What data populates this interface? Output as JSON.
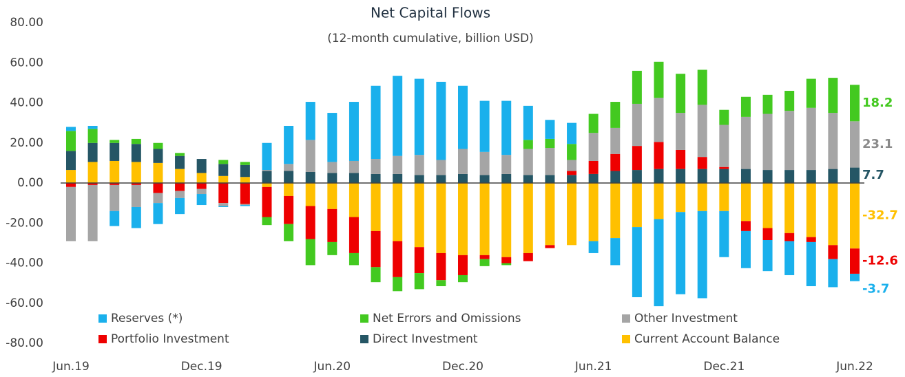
{
  "chart_data": {
    "type": "stacked-bar",
    "title": "Net Capital Flows",
    "subtitle": "(12-month cumulative, billion USD)",
    "categories": [
      "Jun.19",
      null,
      null,
      null,
      null,
      null,
      "Dec.19",
      null,
      null,
      null,
      null,
      null,
      "Jun.20",
      null,
      null,
      null,
      null,
      null,
      "Dec.20",
      null,
      null,
      null,
      null,
      null,
      "Jun.21",
      null,
      null,
      null,
      null,
      null,
      "Dec.21",
      null,
      null,
      null,
      null,
      null,
      "Jun.22"
    ],
    "ylim": [
      -80,
      80
    ],
    "yticks": [
      {
        "value": -80,
        "label": "-80.00"
      },
      {
        "value": -60,
        "label": "-60.00"
      },
      {
        "value": -40,
        "label": "-40.00"
      },
      {
        "value": -20,
        "label": "-20.00"
      },
      {
        "value": 0,
        "label": "0.00"
      },
      {
        "value": 20,
        "label": "20.00"
      },
      {
        "value": 40,
        "label": "40.00"
      },
      {
        "value": 60,
        "label": "60.00"
      },
      {
        "value": 80,
        "label": "80.00"
      }
    ],
    "series": [
      {
        "name": "Reserves (*)",
        "color": "#1ab0ec",
        "values": [
          2,
          1.5,
          -7.5,
          -10.5,
          -10.5,
          -8,
          -5.5,
          -0.5,
          -0.5,
          13.5,
          19,
          19,
          24.5,
          29.5,
          36.5,
          40,
          38,
          39,
          31.5,
          25.5,
          27,
          17,
          9.5,
          10.5,
          -6,
          -13.5,
          -35,
          -43.5,
          -41,
          -43.5,
          -23,
          -18.5,
          -15.5,
          -17,
          -22,
          -14,
          -3.7
        ]
      },
      {
        "name": "Net Errors and Omissions",
        "color": "#43c920",
        "values": [
          10,
          7,
          1.5,
          2.5,
          3,
          1.5,
          0,
          2,
          1.5,
          -4,
          -8.5,
          -13,
          -6.5,
          -6,
          -7.5,
          -7,
          -8,
          -3,
          -3.5,
          -3.5,
          -1,
          4.5,
          4.5,
          8,
          9.5,
          13,
          16.5,
          18,
          19.5,
          17.5,
          7.5,
          10,
          9.5,
          10,
          14.5,
          17.5,
          18.2
        ]
      },
      {
        "name": "Other Investment",
        "color": "#a5a5a5",
        "values": [
          -27,
          -28,
          -13,
          -11,
          -5,
          -3.5,
          -2.5,
          -1.5,
          -0.5,
          0.5,
          3.5,
          16,
          5.5,
          6,
          7.5,
          9,
          10,
          7.5,
          12.5,
          11.5,
          9.5,
          13,
          13.5,
          5.5,
          14,
          13,
          21,
          22,
          18.5,
          26,
          21,
          26,
          28,
          29.5,
          31,
          28,
          23.1
        ]
      },
      {
        "name": "Portfolio Investment",
        "color": "#ee0000",
        "values": [
          -2,
          -1,
          -1,
          -1,
          -5,
          -4,
          -3,
          -10,
          -10.5,
          -15,
          -14,
          -16.5,
          -16.5,
          -18,
          -18,
          -18,
          -13,
          -13.5,
          -10,
          -2,
          -3,
          -4,
          -1.5,
          2,
          6.5,
          8.5,
          12,
          13.5,
          9.5,
          6,
          1,
          -5,
          -6,
          -4,
          -2.5,
          -7,
          -12.6
        ]
      },
      {
        "name": "Direct Investment",
        "color": "#255665",
        "values": [
          9.5,
          9.5,
          9,
          9,
          7,
          6.5,
          7,
          6,
          6,
          6,
          6,
          5.5,
          5,
          5,
          4.5,
          4.5,
          4,
          4,
          4.5,
          4,
          4.5,
          4,
          4,
          4,
          4.5,
          6,
          6.5,
          7,
          7,
          7,
          7,
          7,
          6.5,
          6.5,
          6.5,
          7,
          7.7
        ]
      },
      {
        "name": "Current Account Balance",
        "color": "#ffc000",
        "values": [
          6.5,
          10.5,
          11,
          10.5,
          10,
          7,
          5,
          3.5,
          3,
          -2,
          -6.5,
          -11.5,
          -13,
          -17,
          -24,
          -29,
          -32,
          -35,
          -36,
          -36,
          -37,
          -35,
          -31,
          -31,
          -29,
          -27.5,
          -22,
          -18,
          -14.5,
          -14,
          -14,
          -19,
          -22.5,
          -25,
          -27,
          -31,
          -32.7
        ]
      }
    ]
  }
}
